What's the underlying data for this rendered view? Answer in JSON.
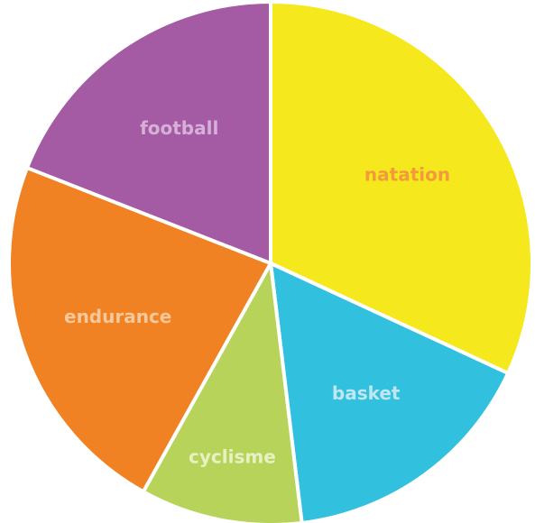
{
  "chart_data": {
    "type": "pie",
    "title": "",
    "start_angle_deg": 0,
    "direction": "clockwise",
    "slices": [
      {
        "label": "natation",
        "value": 33.5,
        "color": "#f5e81c",
        "label_color": "#f39a3c"
      },
      {
        "label": "basket",
        "value": 17.0,
        "color": "#31c1df",
        "label_color": "#bfe6f2"
      },
      {
        "label": "cyclisme",
        "value": 10.5,
        "color": "#b8d35a",
        "label_color": "#e8f0c4"
      },
      {
        "label": "endurance",
        "value": 24.0,
        "color": "#f08223",
        "label_color": "#f8c79a"
      },
      {
        "label": "football",
        "value": 20.0,
        "color": "#a55aa4",
        "label_color": "#d5b0d7"
      }
    ],
    "separator_color": "#ffffff"
  }
}
